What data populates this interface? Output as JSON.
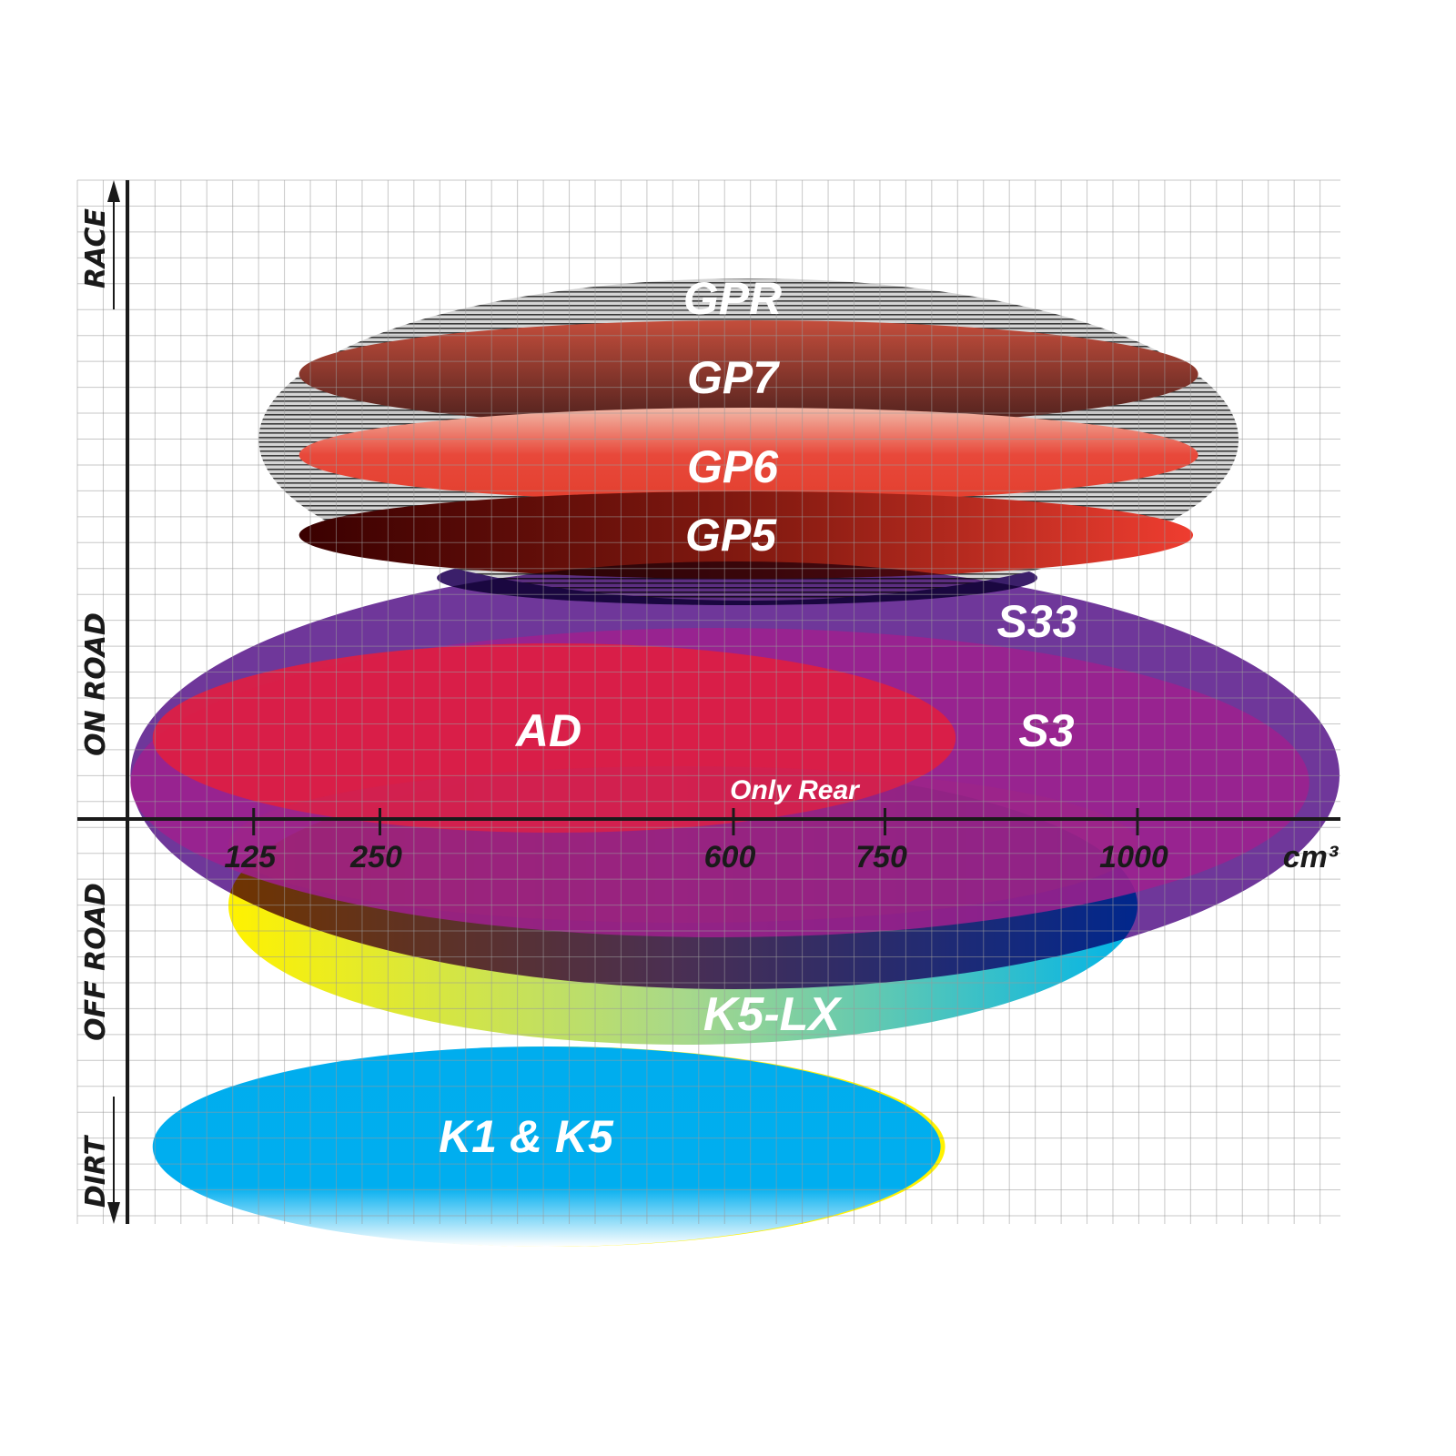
{
  "chart_data": {
    "type": "range-ellipse",
    "xlabel": "cm³",
    "x_ticks": [
      125,
      250,
      600,
      750,
      1000
    ],
    "y_categories": [
      "RACE",
      "ON ROAD",
      "OFF ROAD",
      "DIRT"
    ],
    "grid": true,
    "products": [
      {
        "name": "GPR",
        "cc_range": [
          130,
          1100
        ],
        "color": "#9a9a9a",
        "fill": "striped-grey"
      },
      {
        "name": "GP7",
        "cc_range": [
          170,
          1060
        ],
        "color": "#b9483a"
      },
      {
        "name": "GP6",
        "cc_range": [
          170,
          1060
        ],
        "color": "#e8453a"
      },
      {
        "name": "GP5",
        "cc_range": [
          170,
          1055
        ],
        "color": "#8a1a10"
      },
      {
        "name": "S33",
        "cc_range": [
          3,
          1200
        ],
        "color": "#672c95"
      },
      {
        "name": "S3",
        "cc_range": [
          3,
          1170
        ],
        "color": "#9c1f8c"
      },
      {
        "name": "AD",
        "cc_range": [
          25,
          820
        ],
        "color": "#dc1f45"
      },
      {
        "name": "Only Rear",
        "cc_range": [
          100,
          1000
        ],
        "color": "#a0246a"
      },
      {
        "name": "K5-LX",
        "cc_range": [
          100,
          1000
        ],
        "color": "#f6ef1a",
        "color2": "#00b3e6"
      },
      {
        "name": "K1 & K5",
        "cc_range": [
          25,
          805
        ],
        "color": "#00aeef"
      }
    ]
  }
}
